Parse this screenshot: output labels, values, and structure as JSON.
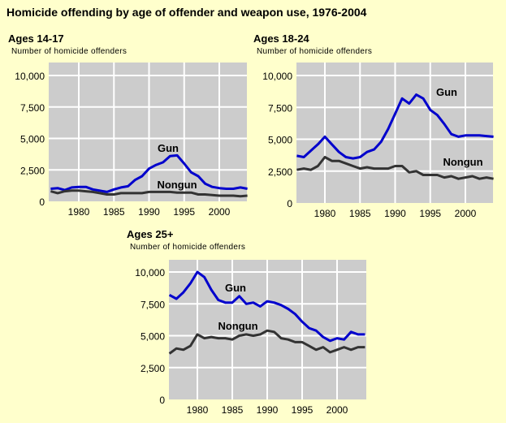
{
  "title": "Homicide offending by age of offender and weapon use, 1976-2004",
  "colors": {
    "background": "#ffffcc",
    "plot": "#cccccc",
    "grid": "#ffffff",
    "gun": "#0000cc",
    "nongun": "#333333"
  },
  "chart_data": [
    {
      "type": "line",
      "title": "Ages 14-17",
      "ylabel": "Number of homicide offenders",
      "x": [
        1976,
        1977,
        1978,
        1979,
        1980,
        1981,
        1982,
        1983,
        1984,
        1985,
        1986,
        1987,
        1988,
        1989,
        1990,
        1991,
        1992,
        1993,
        1994,
        1995,
        1996,
        1997,
        1998,
        1999,
        2000,
        2001,
        2002,
        2003,
        2004
      ],
      "xticks": [
        "1980",
        "1985",
        "1990",
        "1995",
        "2000"
      ],
      "yticks": [
        "0",
        "2,500",
        "5,000",
        "7,500",
        "10,000"
      ],
      "xlim": [
        1976,
        2004
      ],
      "ylim": [
        0,
        11000
      ],
      "grid": true,
      "series": [
        {
          "name": "Gun",
          "values": [
            1000,
            1050,
            900,
            1100,
            1150,
            1150,
            950,
            850,
            750,
            950,
            1100,
            1200,
            1700,
            2000,
            2600,
            2900,
            3100,
            3600,
            3650,
            3000,
            2300,
            2000,
            1400,
            1150,
            1050,
            1000,
            1000,
            1100,
            1000
          ]
        },
        {
          "name": "Nongun",
          "values": [
            800,
            650,
            800,
            850,
            850,
            800,
            750,
            650,
            550,
            550,
            650,
            650,
            650,
            650,
            750,
            750,
            750,
            750,
            700,
            700,
            700,
            550,
            550,
            500,
            450,
            450,
            450,
            400,
            450
          ]
        }
      ]
    },
    {
      "type": "line",
      "title": "Ages 18-24",
      "ylabel": "Number of homicide offenders",
      "x": [
        1976,
        1977,
        1978,
        1979,
        1980,
        1981,
        1982,
        1983,
        1984,
        1985,
        1986,
        1987,
        1988,
        1989,
        1990,
        1991,
        1992,
        1993,
        1994,
        1995,
        1996,
        1997,
        1998,
        1999,
        2000,
        2001,
        2002,
        2003,
        2004
      ],
      "xticks": [
        "1980",
        "1985",
        "1990",
        "1995",
        "2000"
      ],
      "yticks": [
        "0",
        "2,500",
        "5,000",
        "7,500",
        "10,000"
      ],
      "xlim": [
        1976,
        2004
      ],
      "ylim": [
        0,
        11000
      ],
      "grid": true,
      "series": [
        {
          "name": "Gun",
          "values": [
            3700,
            3600,
            4100,
            4600,
            5200,
            4600,
            4000,
            3600,
            3500,
            3600,
            4000,
            4200,
            4800,
            5800,
            7000,
            8200,
            7800,
            8500,
            8200,
            7300,
            6900,
            6200,
            5400,
            5200,
            5300,
            5300,
            5300,
            5250,
            5200
          ]
        },
        {
          "name": "Nongun",
          "values": [
            2600,
            2700,
            2600,
            2900,
            3600,
            3300,
            3300,
            3100,
            2900,
            2700,
            2800,
            2700,
            2700,
            2700,
            2900,
            2900,
            2400,
            2500,
            2200,
            2200,
            2200,
            2000,
            2100,
            1900,
            2000,
            2100,
            1900,
            2000,
            1900
          ]
        }
      ]
    },
    {
      "type": "line",
      "title": "Ages 25+",
      "ylabel": "Number of homicide offenders",
      "x": [
        1976,
        1977,
        1978,
        1979,
        1980,
        1981,
        1982,
        1983,
        1984,
        1985,
        1986,
        1987,
        1988,
        1989,
        1990,
        1991,
        1992,
        1993,
        1994,
        1995,
        1996,
        1997,
        1998,
        1999,
        2000,
        2001,
        2002,
        2003,
        2004
      ],
      "xticks": [
        "1980",
        "1985",
        "1990",
        "1995",
        "2000"
      ],
      "yticks": [
        "0",
        "2,500",
        "5,000",
        "7,500",
        "10,000"
      ],
      "xlim": [
        1976,
        2004
      ],
      "ylim": [
        0,
        11000
      ],
      "grid": true,
      "series": [
        {
          "name": "Gun",
          "values": [
            8200,
            7900,
            8400,
            9100,
            10000,
            9600,
            8600,
            7800,
            7600,
            7600,
            8100,
            7500,
            7600,
            7300,
            7700,
            7600,
            7400,
            7100,
            6700,
            6100,
            5600,
            5400,
            4900,
            4600,
            4800,
            4700,
            5300,
            5100,
            5100
          ]
        },
        {
          "name": "Nongun",
          "values": [
            3600,
            4000,
            3900,
            4200,
            5100,
            4800,
            4900,
            4800,
            4800,
            4700,
            5000,
            5100,
            5000,
            5100,
            5400,
            5300,
            4800,
            4700,
            4500,
            4500,
            4200,
            3900,
            4100,
            3700,
            3900,
            4100,
            3900,
            4100,
            4100
          ]
        }
      ]
    }
  ]
}
